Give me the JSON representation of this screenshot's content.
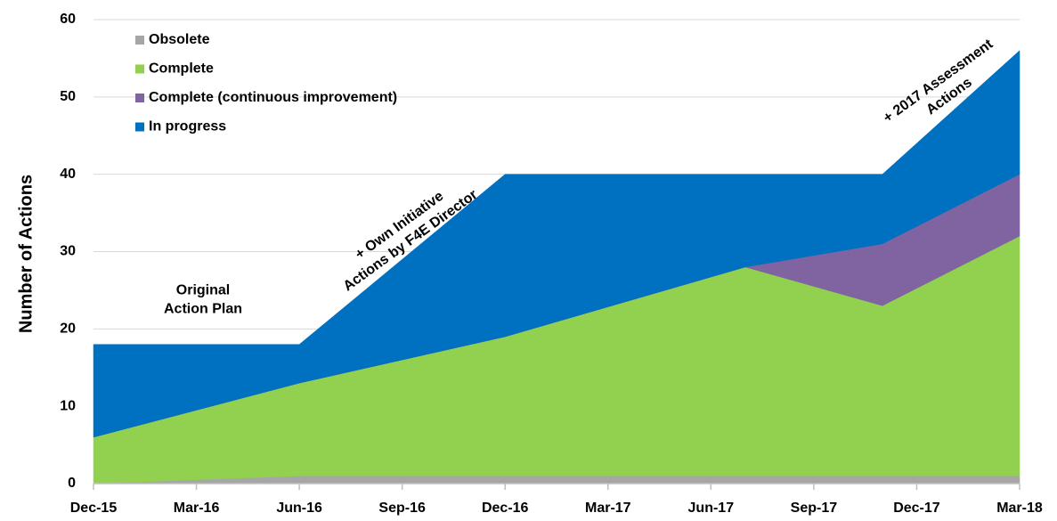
{
  "chart_data": {
    "type": "stacked_area",
    "y_label": "Number of Actions",
    "x": [
      0,
      6,
      12,
      19,
      23,
      27
    ],
    "xlim": [
      0,
      27
    ],
    "xticks": [
      {
        "value": 0,
        "label": "Dec-15"
      },
      {
        "value": 3,
        "label": "Mar-16"
      },
      {
        "value": 6,
        "label": "Jun-16"
      },
      {
        "value": 9,
        "label": "Sep-16"
      },
      {
        "value": 12,
        "label": "Dec-16"
      },
      {
        "value": 15,
        "label": "Mar-17"
      },
      {
        "value": 18,
        "label": "Jun-17"
      },
      {
        "value": 21,
        "label": "Sep-17"
      },
      {
        "value": 24,
        "label": "Dec-17"
      },
      {
        "value": 27,
        "label": "Mar-18"
      }
    ],
    "ylim": [
      0,
      60
    ],
    "yticks": [
      0,
      10,
      20,
      30,
      40,
      50,
      60
    ],
    "grid": true,
    "legend": "upper left",
    "series": [
      {
        "name": "Obsolete",
        "color": "#a6a6a6",
        "values": [
          0,
          1,
          1,
          1,
          1,
          1
        ]
      },
      {
        "name": "Complete",
        "color": "#92d050",
        "values": [
          6,
          12,
          18,
          27,
          22,
          31
        ]
      },
      {
        "name": "Complete (continuous improvement)",
        "color": "#8064a2",
        "values": [
          0,
          0,
          0,
          0,
          8,
          8
        ]
      },
      {
        "name": "In progress",
        "color": "#0070c0",
        "values": [
          12,
          5,
          21,
          12,
          9,
          16
        ]
      }
    ],
    "annotations": [
      {
        "lines": [
          "Original",
          "Action Plan"
        ]
      },
      {
        "lines": [
          "+ Own Initiative",
          "Actions by F4E Director"
        ]
      },
      {
        "lines": [
          "+ 2017 Assessment",
          "Actions"
        ]
      }
    ]
  }
}
